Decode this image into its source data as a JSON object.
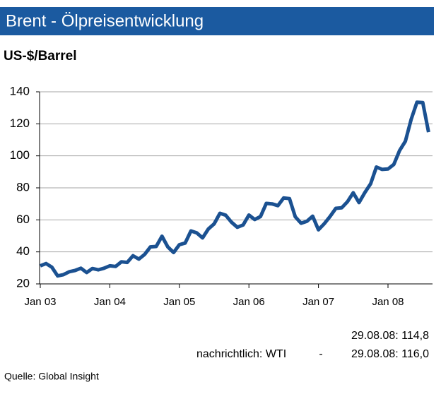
{
  "chart_data": {
    "type": "line",
    "title": "Brent - Ölpreisentwicklung",
    "y_label": "US-$/Barrel",
    "categories": [
      "Jan 03",
      null,
      null,
      null,
      null,
      null,
      null,
      null,
      null,
      null,
      null,
      null,
      "Jan 04",
      null,
      null,
      null,
      null,
      null,
      null,
      null,
      null,
      null,
      null,
      null,
      "Jan 05",
      null,
      null,
      null,
      null,
      null,
      null,
      null,
      null,
      null,
      null,
      null,
      "Jan 06",
      null,
      null,
      null,
      null,
      null,
      null,
      null,
      null,
      null,
      null,
      null,
      "Jan 07",
      null,
      null,
      null,
      null,
      null,
      null,
      null,
      null,
      null,
      null,
      null,
      "Jan 08",
      null,
      null,
      null,
      null,
      null,
      null,
      null
    ],
    "values": [
      31.3,
      32.7,
      30.4,
      25.0,
      25.8,
      27.6,
      28.4,
      29.8,
      27.1,
      29.6,
      28.8,
      29.8,
      31.3,
      30.9,
      33.8,
      33.4,
      37.6,
      35.5,
      38.4,
      43.1,
      43.4,
      49.8,
      43.1,
      39.6,
      44.5,
      45.5,
      53.1,
      51.9,
      48.7,
      54.3,
      57.5,
      64.1,
      62.9,
      58.5,
      55.4,
      56.8,
      63.0,
      60.2,
      62.1,
      70.3,
      70.0,
      68.9,
      73.7,
      73.3,
      61.9,
      57.9,
      59.1,
      62.3,
      53.8,
      57.6,
      62.1,
      67.2,
      67.5,
      71.3,
      76.9,
      70.8,
      77.0,
      82.5,
      93.0,
      91.5,
      91.8,
      94.6,
      103.3,
      109.1,
      122.8,
      133.5,
      133.3,
      114.8
    ],
    "color": "#1b5191",
    "ylim": [
      20,
      140
    ],
    "yticks": [
      20,
      40,
      60,
      80,
      100,
      120,
      140
    ],
    "grid": true,
    "annotations": [
      "29.08.08: 114,8",
      "nachrichtlich: WTI",
      "-",
      "29.08.08: 116,0"
    ],
    "source": "Quelle: Global Insight"
  }
}
